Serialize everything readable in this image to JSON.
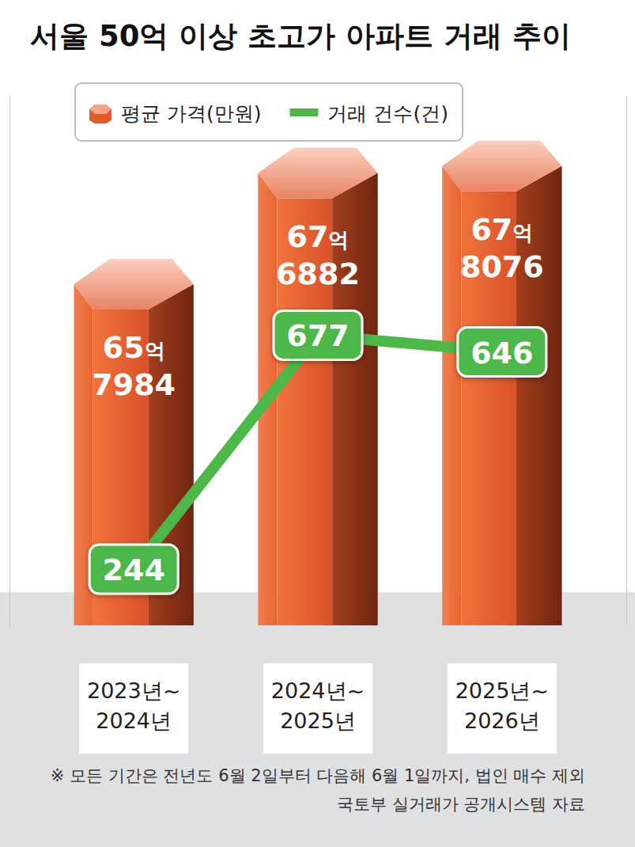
{
  "chart_data": {
    "type": "bar",
    "title": "서울 50억 이상 초고가 아파트 거래 추이",
    "categories": [
      "2023년~\n2024년",
      "2024년~\n2025년",
      "2025년~\n2026년"
    ],
    "series": [
      {
        "name": "평균 가격(만원)",
        "type": "bar",
        "color": "#e2592a",
        "values": [
          657984,
          676882,
          678076
        ],
        "value_labels": [
          "65억 7984",
          "67억 6882",
          "67억 8076"
        ]
      },
      {
        "name": "거래 건수(건)",
        "type": "line",
        "axis": "y2",
        "color": "#4cb848",
        "values": [
          244,
          677,
          646
        ]
      }
    ],
    "ylim": [
      600000,
      690000
    ],
    "yticks": [],
    "y2lim": [
      140,
      1120
    ],
    "y2ticks": [],
    "grid": false,
    "legend": "top",
    "data_labels": true,
    "tick_labels": false,
    "annotations": [
      "※ 모든 기간은 전년도 6월 2일부터 다음해 6월 1일까지, 법인 매수 제외",
      "국토부 실거래가 공개시스템 자료"
    ]
  }
}
